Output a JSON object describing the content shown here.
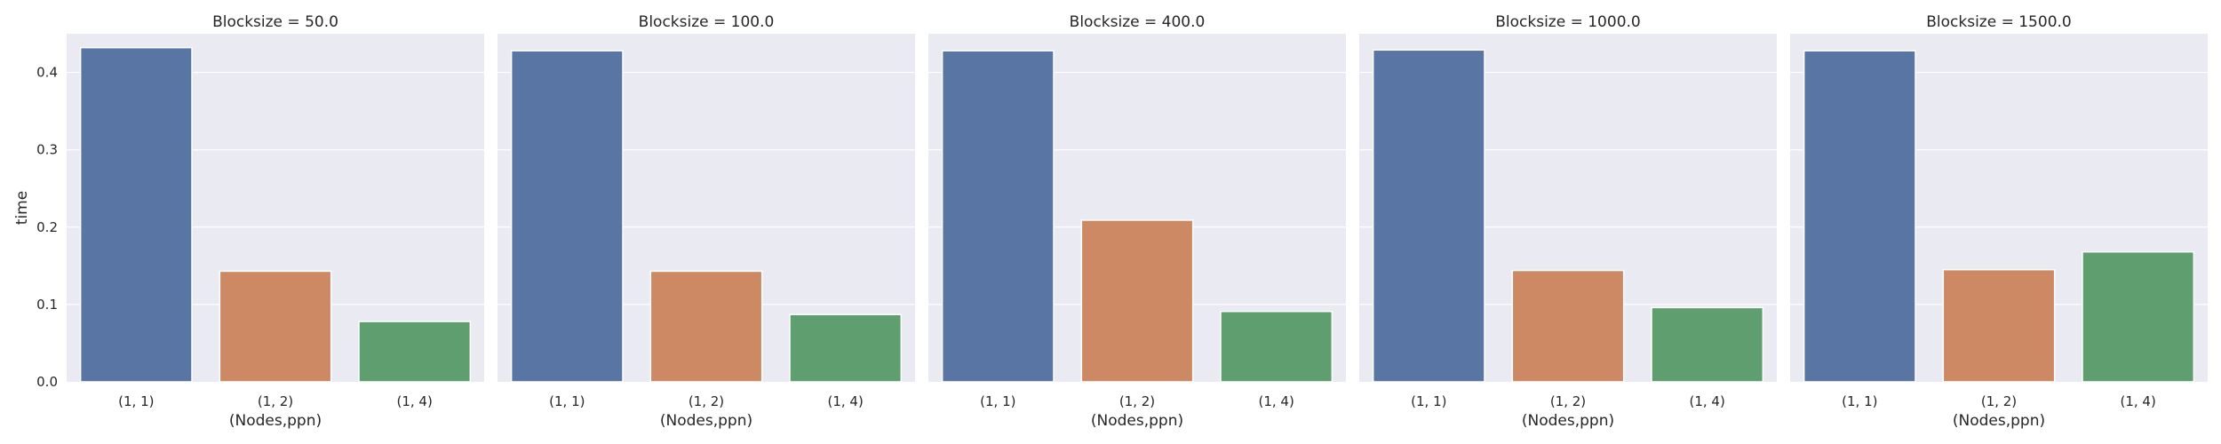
{
  "chart_data": [
    {
      "type": "bar",
      "title": "Blocksize = 50.0",
      "xlabel": "(Nodes,ppn)",
      "ylabel": "time",
      "categories": [
        "(1, 1)",
        "(1, 2)",
        "(1, 4)"
      ],
      "values": [
        0.432,
        0.143,
        0.078
      ],
      "colors": [
        "#5975a4",
        "#cc8963",
        "#5f9e6e"
      ],
      "ylim": [
        0,
        0.45
      ],
      "yticks": [
        "0.0",
        "0.1",
        "0.2",
        "0.3",
        "0.4"
      ],
      "grid": true
    },
    {
      "type": "bar",
      "title": "Blocksize = 100.0",
      "xlabel": "(Nodes,ppn)",
      "ylabel": "",
      "categories": [
        "(1, 1)",
        "(1, 2)",
        "(1, 4)"
      ],
      "values": [
        0.428,
        0.143,
        0.087
      ],
      "colors": [
        "#5975a4",
        "#cc8963",
        "#5f9e6e"
      ],
      "ylim": [
        0,
        0.45
      ],
      "yticks": [],
      "grid": true
    },
    {
      "type": "bar",
      "title": "Blocksize = 400.0",
      "xlabel": "(Nodes,ppn)",
      "ylabel": "",
      "categories": [
        "(1, 1)",
        "(1, 2)",
        "(1, 4)"
      ],
      "values": [
        0.428,
        0.209,
        0.091
      ],
      "colors": [
        "#5975a4",
        "#cc8963",
        "#5f9e6e"
      ],
      "ylim": [
        0,
        0.45
      ],
      "yticks": [],
      "grid": true
    },
    {
      "type": "bar",
      "title": "Blocksize = 1000.0",
      "xlabel": "(Nodes,ppn)",
      "ylabel": "",
      "categories": [
        "(1, 1)",
        "(1, 2)",
        "(1, 4)"
      ],
      "values": [
        0.429,
        0.144,
        0.096
      ],
      "colors": [
        "#5975a4",
        "#cc8963",
        "#5f9e6e"
      ],
      "ylim": [
        0,
        0.45
      ],
      "yticks": [],
      "grid": true
    },
    {
      "type": "bar",
      "title": "Blocksize = 1500.0",
      "xlabel": "(Nodes,ppn)",
      "ylabel": "",
      "categories": [
        "(1, 1)",
        "(1, 2)",
        "(1, 4)"
      ],
      "values": [
        0.428,
        0.145,
        0.168
      ],
      "colors": [
        "#5975a4",
        "#cc8963",
        "#5f9e6e"
      ],
      "ylim": [
        0,
        0.45
      ],
      "yticks": [],
      "grid": true
    }
  ],
  "style": {
    "panel_background": "#eaeaf2",
    "grid_color": "#ffffff",
    "text_color": "#262626"
  }
}
